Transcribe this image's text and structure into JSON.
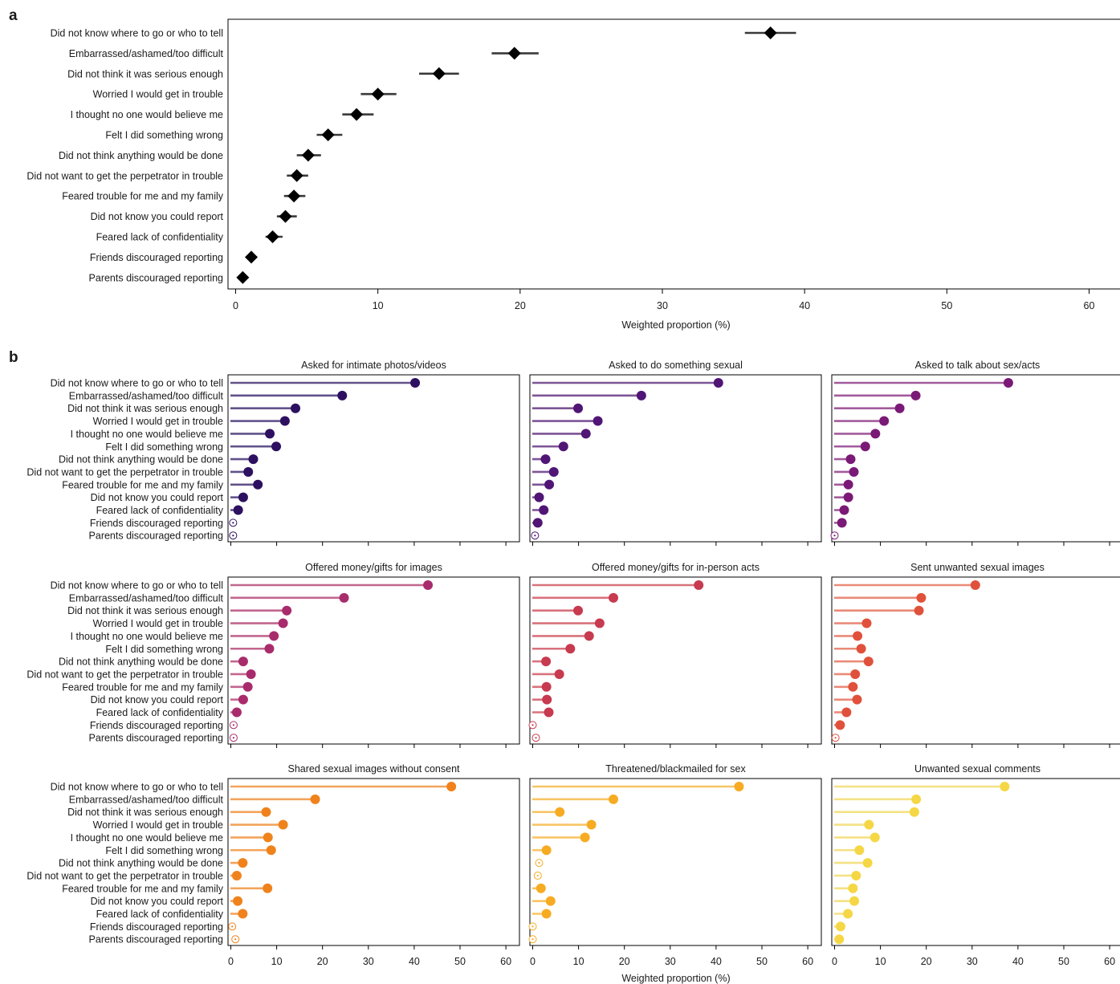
{
  "labels": {
    "panel_a": "a",
    "panel_b": "b",
    "xlabel": "Weighted proportion (%)"
  },
  "colors": {
    "diamond": "#000000",
    "ci_line": "#3a3a3a",
    "axis": "#000000"
  },
  "chart_data": [
    {
      "type": "scatter",
      "marker": "diamond with horizontal error bars",
      "categories": [
        "Did not know where to go or who to tell",
        "Embarrassed/ashamed/too difficult",
        "Did not think it was serious enough",
        "Worried I would get in trouble",
        "I thought no one would believe me",
        "Felt I did something wrong",
        "Did not think anything would be done",
        "Did not want to get the perpetrator in trouble",
        "Feared trouble for me and my family",
        "Did not know you could report",
        "Feared lack of confidentiality",
        "Friends discouraged reporting",
        "Parents discouraged reporting"
      ],
      "values": [
        37.6,
        19.6,
        14.3,
        10.0,
        8.5,
        6.5,
        5.1,
        4.3,
        4.1,
        3.5,
        2.6,
        1.1,
        0.5
      ],
      "ci_low": [
        35.8,
        18.0,
        12.9,
        8.8,
        7.5,
        5.7,
        4.3,
        3.6,
        3.4,
        2.9,
        2.1,
        0.8,
        0.3
      ],
      "ci_high": [
        39.4,
        21.3,
        15.7,
        11.3,
        9.7,
        7.5,
        6.0,
        5.1,
        4.9,
        4.3,
        3.3,
        1.5,
        0.7
      ],
      "xlabel": "Weighted proportion (%)",
      "xlim": [
        -0.5,
        62
      ],
      "xticks": [
        0,
        10,
        20,
        30,
        40,
        50,
        60
      ],
      "grid": false
    },
    {
      "type": "lollipop",
      "title": "Asked for intimate photos/videos",
      "color": "#2d1160",
      "line_color": "#61528a",
      "values": [
        40.2,
        24.3,
        14.1,
        11.8,
        8.5,
        9.9,
        4.9,
        3.8,
        5.9,
        2.7,
        1.6,
        0.5,
        0.5
      ],
      "hollow": [
        false,
        false,
        false,
        false,
        false,
        false,
        false,
        false,
        false,
        false,
        false,
        true,
        true
      ],
      "xticks": [
        0,
        10,
        20,
        30,
        40,
        50,
        60
      ],
      "xlim": [
        -0.5,
        63.5
      ]
    },
    {
      "type": "lollipop",
      "title": "Asked to do something sexual",
      "color": "#501575",
      "line_color": "#7d5596",
      "values": [
        40.5,
        23.7,
        9.9,
        14.2,
        11.6,
        6.7,
        2.8,
        4.6,
        3.6,
        1.4,
        2.4,
        1.1,
        0.5
      ],
      "hollow": [
        false,
        false,
        false,
        false,
        false,
        false,
        false,
        false,
        false,
        false,
        false,
        false,
        true
      ],
      "xticks": [
        0,
        10,
        20,
        30,
        40,
        50,
        60
      ],
      "xlim": [
        -0.5,
        63.5
      ]
    },
    {
      "type": "lollipop",
      "title": "Asked to talk about sex/acts",
      "color": "#7b1a76",
      "line_color": "#a25b9c",
      "values": [
        37.9,
        17.7,
        14.2,
        10.8,
        8.9,
        6.7,
        3.5,
        4.2,
        3.0,
        3.0,
        2.1,
        1.6,
        0.0
      ],
      "hollow": [
        false,
        false,
        false,
        false,
        false,
        false,
        false,
        false,
        false,
        false,
        false,
        false,
        true
      ],
      "xticks": [
        0,
        10,
        20,
        30,
        40,
        50,
        60
      ],
      "xlim": [
        -0.5,
        63.5
      ]
    },
    {
      "type": "lollipop",
      "title": "Offered money/gifts for images",
      "color": "#a82c6c",
      "line_color": "#c2668f",
      "values": [
        43.0,
        24.7,
        12.2,
        11.4,
        9.4,
        8.4,
        2.7,
        4.4,
        3.7,
        2.7,
        1.3,
        0.6,
        0.6
      ],
      "hollow": [
        false,
        false,
        false,
        false,
        false,
        false,
        false,
        false,
        false,
        false,
        false,
        true,
        true
      ],
      "xticks": [
        0,
        10,
        20,
        30,
        40,
        50,
        60
      ],
      "xlim": [
        -0.5,
        63.5
      ]
    },
    {
      "type": "lollipop",
      "title": "Offered money/gifts for in-person acts",
      "color": "#c73a4f",
      "line_color": "#d8727c",
      "values": [
        36.2,
        17.6,
        9.9,
        14.6,
        12.3,
        8.2,
        2.9,
        5.8,
        3.0,
        3.1,
        3.5,
        0.0,
        0.7
      ],
      "hollow": [
        false,
        false,
        false,
        false,
        false,
        false,
        false,
        false,
        false,
        false,
        false,
        true,
        true
      ],
      "xticks": [
        0,
        10,
        20,
        30,
        40,
        50,
        60
      ],
      "xlim": [
        -0.5,
        63.5
      ]
    },
    {
      "type": "lollipop",
      "title": "Sent unwanted sexual images",
      "color": "#e0513c",
      "line_color": "#ea8a78",
      "values": [
        30.7,
        18.9,
        18.4,
        7.0,
        5.0,
        5.8,
        7.4,
        4.5,
        4.0,
        4.9,
        2.6,
        1.2,
        0.2
      ],
      "hollow": [
        false,
        false,
        false,
        false,
        false,
        false,
        false,
        false,
        false,
        false,
        false,
        false,
        true
      ],
      "xticks": [
        0,
        10,
        20,
        30,
        40,
        50,
        60
      ],
      "xlim": [
        -0.5,
        63.5
      ]
    },
    {
      "type": "lollipop",
      "title": "Shared sexual images without consent",
      "color": "#f0821c",
      "line_color": "#f3a45c",
      "values": [
        48.1,
        18.4,
        7.7,
        11.4,
        8.1,
        8.8,
        2.6,
        1.3,
        8.0,
        1.5,
        2.6,
        0.3,
        1.0
      ],
      "hollow": [
        false,
        false,
        false,
        false,
        false,
        false,
        false,
        false,
        false,
        false,
        false,
        true,
        true
      ],
      "xticks": [
        0,
        10,
        20,
        30,
        40,
        50,
        60
      ],
      "xlim": [
        -0.5,
        63.5
      ]
    },
    {
      "type": "lollipop",
      "title": "Threatened/blackmailed for sex",
      "color": "#f7ab23",
      "line_color": "#f8c565",
      "values": [
        45.0,
        17.6,
        5.9,
        12.8,
        11.4,
        3.0,
        1.4,
        1.1,
        1.8,
        3.9,
        3.0,
        0.0,
        0.0
      ],
      "hollow": [
        false,
        false,
        false,
        false,
        false,
        false,
        true,
        true,
        false,
        false,
        false,
        true,
        true
      ],
      "xticks": [
        0,
        10,
        20,
        30,
        40,
        50,
        60
      ],
      "xlim": [
        -0.5,
        63.5
      ]
    },
    {
      "type": "lollipop",
      "title": "Unwanted sexual comments",
      "color": "#f5d745",
      "line_color": "#f5e184",
      "values": [
        37.1,
        17.8,
        17.4,
        7.5,
        8.8,
        5.4,
        7.2,
        4.7,
        4.0,
        4.3,
        2.9,
        1.3,
        1.0
      ],
      "hollow": [
        false,
        false,
        false,
        false,
        false,
        false,
        false,
        false,
        false,
        false,
        false,
        false,
        false
      ],
      "xticks": [
        0,
        10,
        20,
        30,
        40,
        50,
        60
      ],
      "xlim": [
        -0.5,
        63.5
      ]
    }
  ]
}
